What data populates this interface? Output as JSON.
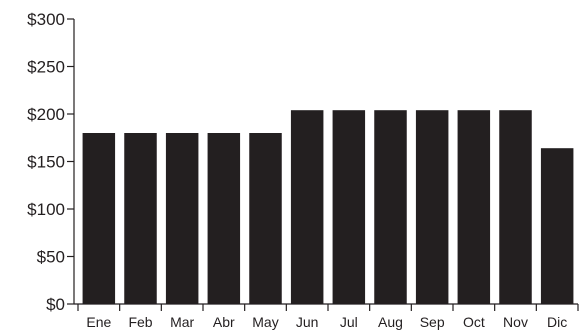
{
  "chart_data": {
    "type": "bar",
    "categories": [
      "Ene",
      "Feb",
      "Mar",
      "Abr",
      "May",
      "Jun",
      "Jul",
      "Aug",
      "Sep",
      "Oct",
      "Nov",
      "Dic"
    ],
    "values": [
      180,
      180,
      180,
      180,
      180,
      204,
      204,
      204,
      204,
      204,
      204,
      164
    ],
    "ylim": [
      0,
      300
    ],
    "yticks": [
      0,
      50,
      100,
      150,
      200,
      250,
      300
    ],
    "ytick_labels": [
      "$0",
      "$50",
      "$100",
      "$150",
      "$200",
      "$250",
      "$300"
    ],
    "bar_color": "#231f20",
    "grid": false,
    "legend": "none"
  }
}
